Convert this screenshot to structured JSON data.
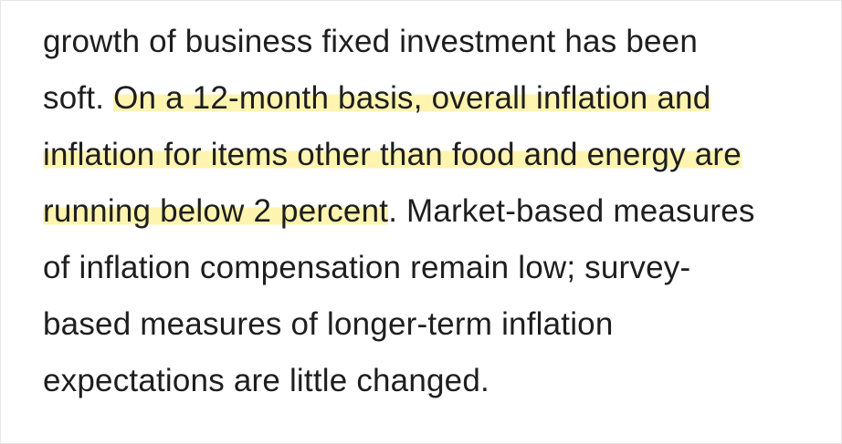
{
  "paragraph": {
    "lines": [
      [
        {
          "text": "growth of business fixed investment has been"
        }
      ],
      [
        {
          "text": "soft. "
        },
        {
          "text": "On a 12-month basis, overall inflation and",
          "highlighted": true
        }
      ],
      [
        {
          "text": "inflation for items other than food and energy are",
          "highlighted": true
        }
      ],
      [
        {
          "text": "running below 2 percent",
          "highlighted": true
        },
        {
          "text": ". Market-based measures"
        }
      ],
      [
        {
          "text": "of inflation compensation remain low; survey-"
        }
      ],
      [
        {
          "text": "based measures of longer-term inflation"
        }
      ],
      [
        {
          "text": "expectations are little changed."
        }
      ]
    ]
  }
}
